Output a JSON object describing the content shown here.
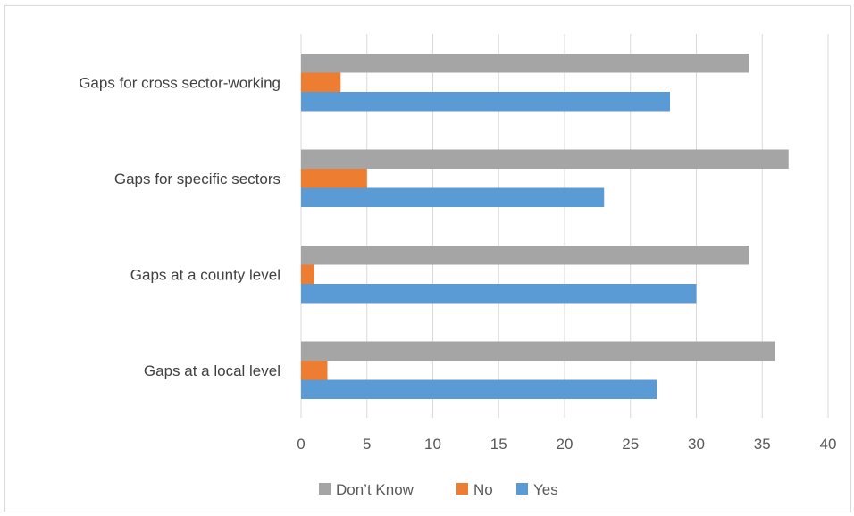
{
  "chart_data": {
    "type": "bar",
    "orientation": "horizontal",
    "categories": [
      "Gaps for cross sector-working",
      "Gaps for specific sectors",
      "Gaps at a county level",
      "Gaps at a local level"
    ],
    "series": [
      {
        "name": "Don’t Know",
        "color": "#a5a5a5",
        "values": [
          34,
          37,
          34,
          36
        ]
      },
      {
        "name": "No",
        "color": "#ed7d31",
        "values": [
          3,
          5,
          1,
          2
        ]
      },
      {
        "name": "Yes",
        "color": "#5b9bd5",
        "values": [
          28,
          23,
          30,
          27
        ]
      }
    ],
    "xlim": [
      0,
      40
    ],
    "xticks": [
      0,
      5,
      10,
      15,
      20,
      25,
      30,
      35,
      40
    ],
    "grid": "vertical",
    "legend_position": "bottom",
    "title": "",
    "xlabel": "",
    "ylabel": ""
  }
}
